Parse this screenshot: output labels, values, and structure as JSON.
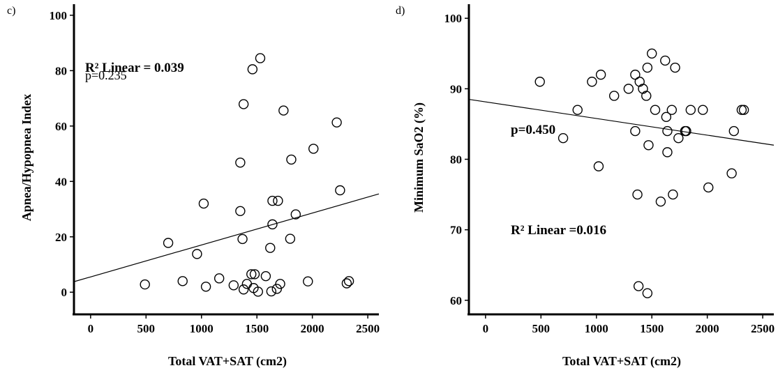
{
  "chart_data": [
    {
      "type": "scatter",
      "panel_label": "c)",
      "xlabel": "Total VAT+SAT (cm2)",
      "ylabel": "Apnea/Hypopnea Index",
      "xlim": [
        -150,
        2600
      ],
      "ylim": [
        -8,
        104
      ],
      "xticks": [
        0,
        500,
        1000,
        1500,
        2000,
        2500
      ],
      "yticks": [
        0,
        20,
        40,
        60,
        80,
        100
      ],
      "annotations": [
        "R² Linear = 0.039",
        "p=0.235"
      ],
      "fit_line": {
        "x": [
          -150,
          2600
        ],
        "y": [
          3.8,
          35.5
        ]
      },
      "points": [
        {
          "x": 490,
          "y": 2.8
        },
        {
          "x": 700,
          "y": 17.8
        },
        {
          "x": 830,
          "y": 4.0
        },
        {
          "x": 960,
          "y": 13.8
        },
        {
          "x": 1020,
          "y": 32.0
        },
        {
          "x": 1040,
          "y": 2.0
        },
        {
          "x": 1160,
          "y": 5.0
        },
        {
          "x": 1290,
          "y": 2.5
        },
        {
          "x": 1350,
          "y": 46.8
        },
        {
          "x": 1350,
          "y": 29.3
        },
        {
          "x": 1370,
          "y": 19.2
        },
        {
          "x": 1380,
          "y": 67.9
        },
        {
          "x": 1380,
          "y": 1.0
        },
        {
          "x": 1410,
          "y": 3.0
        },
        {
          "x": 1450,
          "y": 6.5
        },
        {
          "x": 1460,
          "y": 80.5
        },
        {
          "x": 1470,
          "y": 1.5
        },
        {
          "x": 1480,
          "y": 6.5
        },
        {
          "x": 1510,
          "y": 0.2
        },
        {
          "x": 1530,
          "y": 84.5
        },
        {
          "x": 1580,
          "y": 5.8
        },
        {
          "x": 1620,
          "y": 16.0
        },
        {
          "x": 1630,
          "y": 0.3
        },
        {
          "x": 1640,
          "y": 24.5
        },
        {
          "x": 1640,
          "y": 33.0
        },
        {
          "x": 1690,
          "y": 33.0
        },
        {
          "x": 1680,
          "y": 1.2
        },
        {
          "x": 1710,
          "y": 3.0
        },
        {
          "x": 1740,
          "y": 65.6
        },
        {
          "x": 1800,
          "y": 19.3
        },
        {
          "x": 1810,
          "y": 47.9
        },
        {
          "x": 1850,
          "y": 28.1
        },
        {
          "x": 1960,
          "y": 3.9
        },
        {
          "x": 2010,
          "y": 51.8
        },
        {
          "x": 2220,
          "y": 61.3
        },
        {
          "x": 2250,
          "y": 36.8
        },
        {
          "x": 2310,
          "y": 3.2
        },
        {
          "x": 2330,
          "y": 4.0
        }
      ]
    },
    {
      "type": "scatter",
      "panel_label": "d)",
      "xlabel": "Total VAT+SAT (cm2)",
      "ylabel": "Minimum SaO2 (%)",
      "xlim": [
        -150,
        2600
      ],
      "ylim": [
        58,
        102
      ],
      "xticks": [
        0,
        500,
        1000,
        1500,
        2000,
        2500
      ],
      "yticks": [
        60,
        70,
        80,
        90,
        100
      ],
      "annotations": [
        "p=0.450",
        "R² Linear =0.016"
      ],
      "fit_line": {
        "x": [
          -150,
          2600
        ],
        "y": [
          88.5,
          82.0
        ]
      },
      "points": [
        {
          "x": 490,
          "y": 91
        },
        {
          "x": 700,
          "y": 83
        },
        {
          "x": 830,
          "y": 87
        },
        {
          "x": 960,
          "y": 91
        },
        {
          "x": 1020,
          "y": 79
        },
        {
          "x": 1040,
          "y": 92
        },
        {
          "x": 1160,
          "y": 89
        },
        {
          "x": 1290,
          "y": 90
        },
        {
          "x": 1350,
          "y": 92
        },
        {
          "x": 1350,
          "y": 84
        },
        {
          "x": 1370,
          "y": 75
        },
        {
          "x": 1380,
          "y": 62
        },
        {
          "x": 1390,
          "y": 91
        },
        {
          "x": 1420,
          "y": 90
        },
        {
          "x": 1450,
          "y": 89
        },
        {
          "x": 1460,
          "y": 61
        },
        {
          "x": 1460,
          "y": 93
        },
        {
          "x": 1470,
          "y": 82
        },
        {
          "x": 1500,
          "y": 95
        },
        {
          "x": 1530,
          "y": 87
        },
        {
          "x": 1580,
          "y": 74
        },
        {
          "x": 1620,
          "y": 94
        },
        {
          "x": 1630,
          "y": 86
        },
        {
          "x": 1640,
          "y": 84
        },
        {
          "x": 1640,
          "y": 81
        },
        {
          "x": 1680,
          "y": 87
        },
        {
          "x": 1690,
          "y": 75
        },
        {
          "x": 1710,
          "y": 93
        },
        {
          "x": 1740,
          "y": 83
        },
        {
          "x": 1800,
          "y": 84
        },
        {
          "x": 1810,
          "y": 84
        },
        {
          "x": 1850,
          "y": 87
        },
        {
          "x": 1960,
          "y": 87
        },
        {
          "x": 2010,
          "y": 76
        },
        {
          "x": 2220,
          "y": 78
        },
        {
          "x": 2240,
          "y": 84
        },
        {
          "x": 2310,
          "y": 87
        },
        {
          "x": 2330,
          "y": 87
        }
      ]
    }
  ]
}
